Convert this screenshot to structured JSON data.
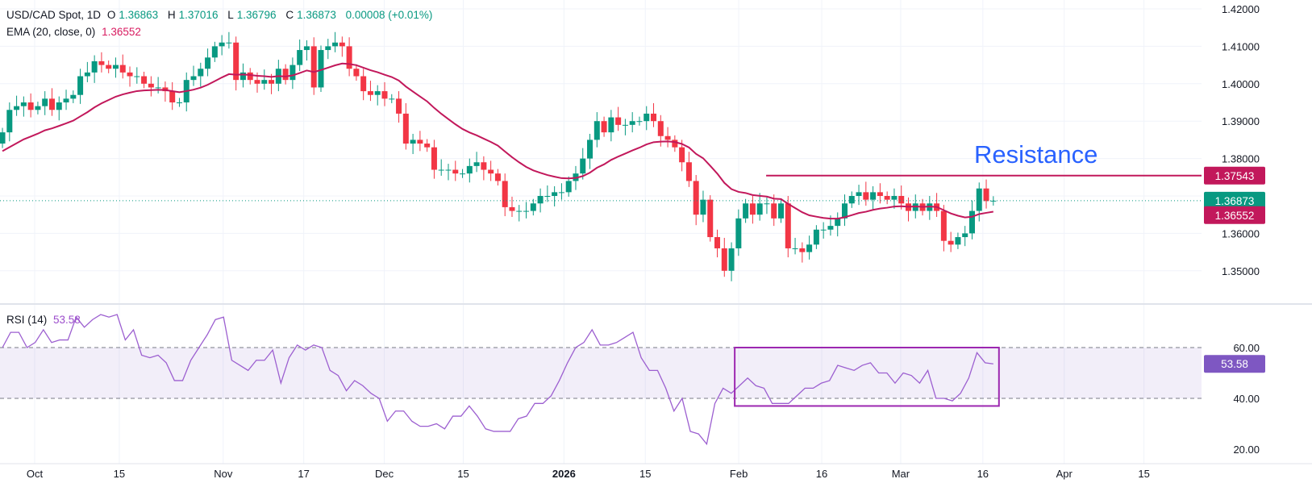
{
  "header": {
    "symbol": "USD/CAD Spot, 1D",
    "open_label": "O",
    "open": "1.36863",
    "high_label": "H",
    "high": "1.37016",
    "low_label": "L",
    "low": "1.36796",
    "close_label": "C",
    "close": "1.36873",
    "change": "0.00008 (+0.01%)",
    "ema_label": "EMA (20, close, 0)",
    "ema_value": "1.36552",
    "rsi_label": "RSI (14)",
    "rsi_value": "53.58"
  },
  "colors": {
    "up": "#089981",
    "down": "#f23645",
    "ema": "#c2185b",
    "rsi": "#9c5fd0",
    "resistance_text": "#2962ff",
    "box": "#9c27b0"
  },
  "chart_data": [
    {
      "type": "candlestick",
      "title": "USD/CAD Spot, 1D",
      "ylim": [
        1.345,
        1.42
      ],
      "y_ticks": [
        "1.42000",
        "1.41000",
        "1.40000",
        "1.39000",
        "1.38000",
        "1.36000",
        "1.35000"
      ],
      "x_ticks": [
        {
          "label": "Oct",
          "bar": 0
        },
        {
          "label": "15",
          "bar": 10.5
        },
        {
          "label": "Nov",
          "bar": 23.4
        },
        {
          "label": "17",
          "bar": 33.4
        },
        {
          "label": "Dec",
          "bar": 43.4
        },
        {
          "label": "15",
          "bar": 53.2
        },
        {
          "label": "2026",
          "bar": 65.7,
          "bold": true
        },
        {
          "label": "15",
          "bar": 75.8
        },
        {
          "label": "Feb",
          "bar": 87.4
        },
        {
          "label": "16",
          "bar": 97.7
        },
        {
          "label": "Mar",
          "bar": 107.5
        },
        {
          "label": "16",
          "bar": 117.7
        },
        {
          "label": "Apr",
          "bar": 127.8
        },
        {
          "label": "15",
          "bar": 137.7
        }
      ],
      "bar_range": [
        -4,
        119
      ],
      "closes": [
        1.387,
        1.393,
        1.394,
        1.395,
        1.393,
        1.394,
        1.396,
        1.393,
        1.395,
        1.396,
        1.397,
        1.402,
        1.403,
        1.406,
        1.405,
        1.404,
        1.405,
        1.403,
        1.402,
        1.402,
        1.4,
        1.399,
        1.399,
        1.398,
        1.395,
        1.395,
        1.401,
        1.402,
        1.404,
        1.407,
        1.41,
        1.411,
        1.411,
        1.401,
        1.403,
        1.401,
        1.4,
        1.401,
        1.4,
        1.404,
        1.401,
        1.405,
        1.409,
        1.41,
        1.399,
        1.409,
        1.41,
        1.411,
        1.41,
        1.404,
        1.402,
        1.398,
        1.397,
        1.398,
        1.396,
        1.396,
        1.392,
        1.384,
        1.385,
        1.384,
        1.383,
        1.377,
        1.377,
        1.377,
        1.376,
        1.376,
        1.378,
        1.379,
        1.377,
        1.376,
        1.374,
        1.367,
        1.366,
        1.366,
        1.366,
        1.368,
        1.37,
        1.37,
        1.371,
        1.371,
        1.374,
        1.376,
        1.38,
        1.385,
        1.39,
        1.387,
        1.391,
        1.389,
        1.389,
        1.39,
        1.39,
        1.392,
        1.39,
        1.386,
        1.385,
        1.383,
        1.379,
        1.374,
        1.365,
        1.369,
        1.359,
        1.356,
        1.35,
        1.356,
        1.364,
        1.368,
        1.365,
        1.368,
        1.368,
        1.364,
        1.368,
        1.356,
        1.356,
        1.355,
        1.357,
        1.361,
        1.361,
        1.362,
        1.364,
        1.368,
        1.37,
        1.371,
        1.369,
        1.371,
        1.37,
        1.369,
        1.37,
        1.368,
        1.366,
        1.368,
        1.366,
        1.368,
        1.366,
        1.358,
        1.357,
        1.359,
        1.36,
        1.366,
        1.372,
        1.36863,
        1.36873
      ],
      "ema_period": 20,
      "last_price": 1.36873,
      "last_price_label": "1.36873",
      "ema_last": 1.36552,
      "ema_last_label": "1.36552",
      "resistance": {
        "price": 1.37543,
        "label": "1.37543",
        "start_bar": 90.8,
        "text": "Resistance"
      }
    },
    {
      "type": "line",
      "title": "RSI (14)",
      "ylim": [
        15,
        78
      ],
      "y_ticks": [
        "60.00",
        "40.00",
        "20.00"
      ],
      "band": [
        40,
        60
      ],
      "values": [
        60,
        66,
        66,
        60,
        62,
        67,
        62,
        63,
        63,
        72,
        68,
        71,
        73,
        72,
        73,
        63,
        67,
        57,
        56,
        57,
        54,
        47,
        47,
        55,
        60,
        65,
        71,
        72,
        55,
        53,
        51,
        55,
        55,
        59,
        46,
        56,
        61,
        59,
        61,
        60,
        51,
        49,
        43,
        47,
        45,
        42,
        40,
        31,
        35,
        35,
        31,
        29,
        29,
        30,
        28,
        33,
        33,
        37,
        33,
        28,
        27,
        27,
        27,
        32,
        33,
        38,
        38,
        41,
        47,
        54,
        60,
        62,
        67,
        61,
        61,
        62,
        64,
        66,
        56,
        51,
        51,
        44,
        35,
        40,
        27,
        26,
        22,
        38,
        44,
        42,
        45,
        48,
        45,
        44,
        38,
        38,
        38,
        41,
        44,
        44,
        46,
        47,
        53,
        52,
        51,
        53,
        54,
        50,
        50,
        46,
        50,
        49,
        46,
        51,
        40,
        40,
        39,
        42,
        48,
        58,
        54,
        53.58
      ],
      "last_label": "53.58",
      "box": {
        "start_bar": 86.9,
        "end_bar": 119.7,
        "rsi_low": 37,
        "rsi_high": 60
      }
    }
  ]
}
